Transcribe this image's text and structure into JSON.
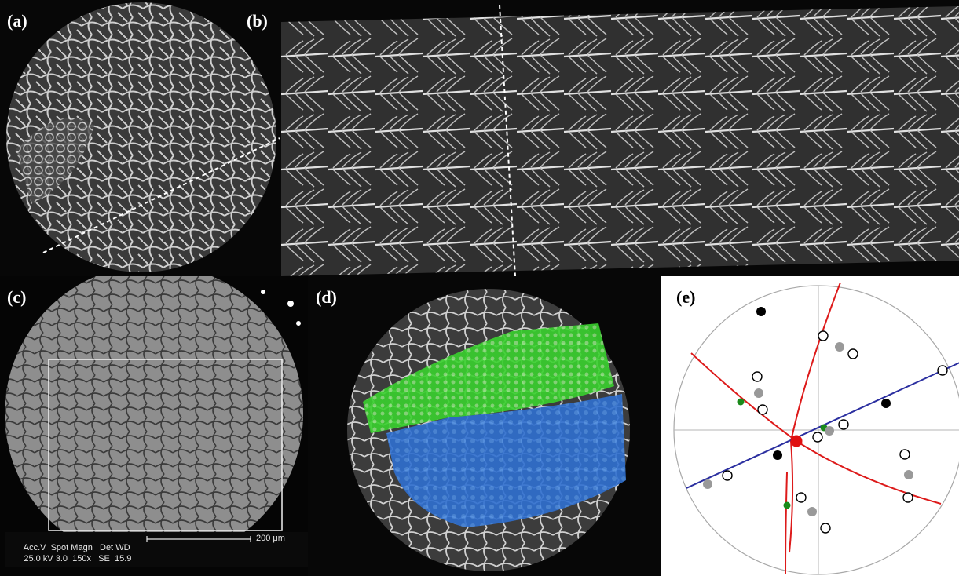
{
  "panels": {
    "a": {
      "label": "(a)"
    },
    "b": {
      "label": "(b)"
    },
    "c": {
      "label": "(c)",
      "sem_info": {
        "headers": [
          "Acc.V",
          "Spot",
          "Magn",
          "Det",
          "WD"
        ],
        "values": [
          "25.0 kV",
          "3.0",
          "150x",
          "SE",
          "15.9"
        ],
        "scale_bar": "200 μm"
      }
    },
    "d": {
      "label": "(d)"
    },
    "e": {
      "label": "(e)"
    }
  },
  "colors": {
    "background_dark": "#070707",
    "dendrite_highlight": "#e6e6e6",
    "grain_green": "#39d12e",
    "grain_blue": "#2f6fd0",
    "trace_red": "#dd1a1a",
    "trace_blue": "#2b2fa0",
    "pole_green": "#1a8a1a"
  }
}
